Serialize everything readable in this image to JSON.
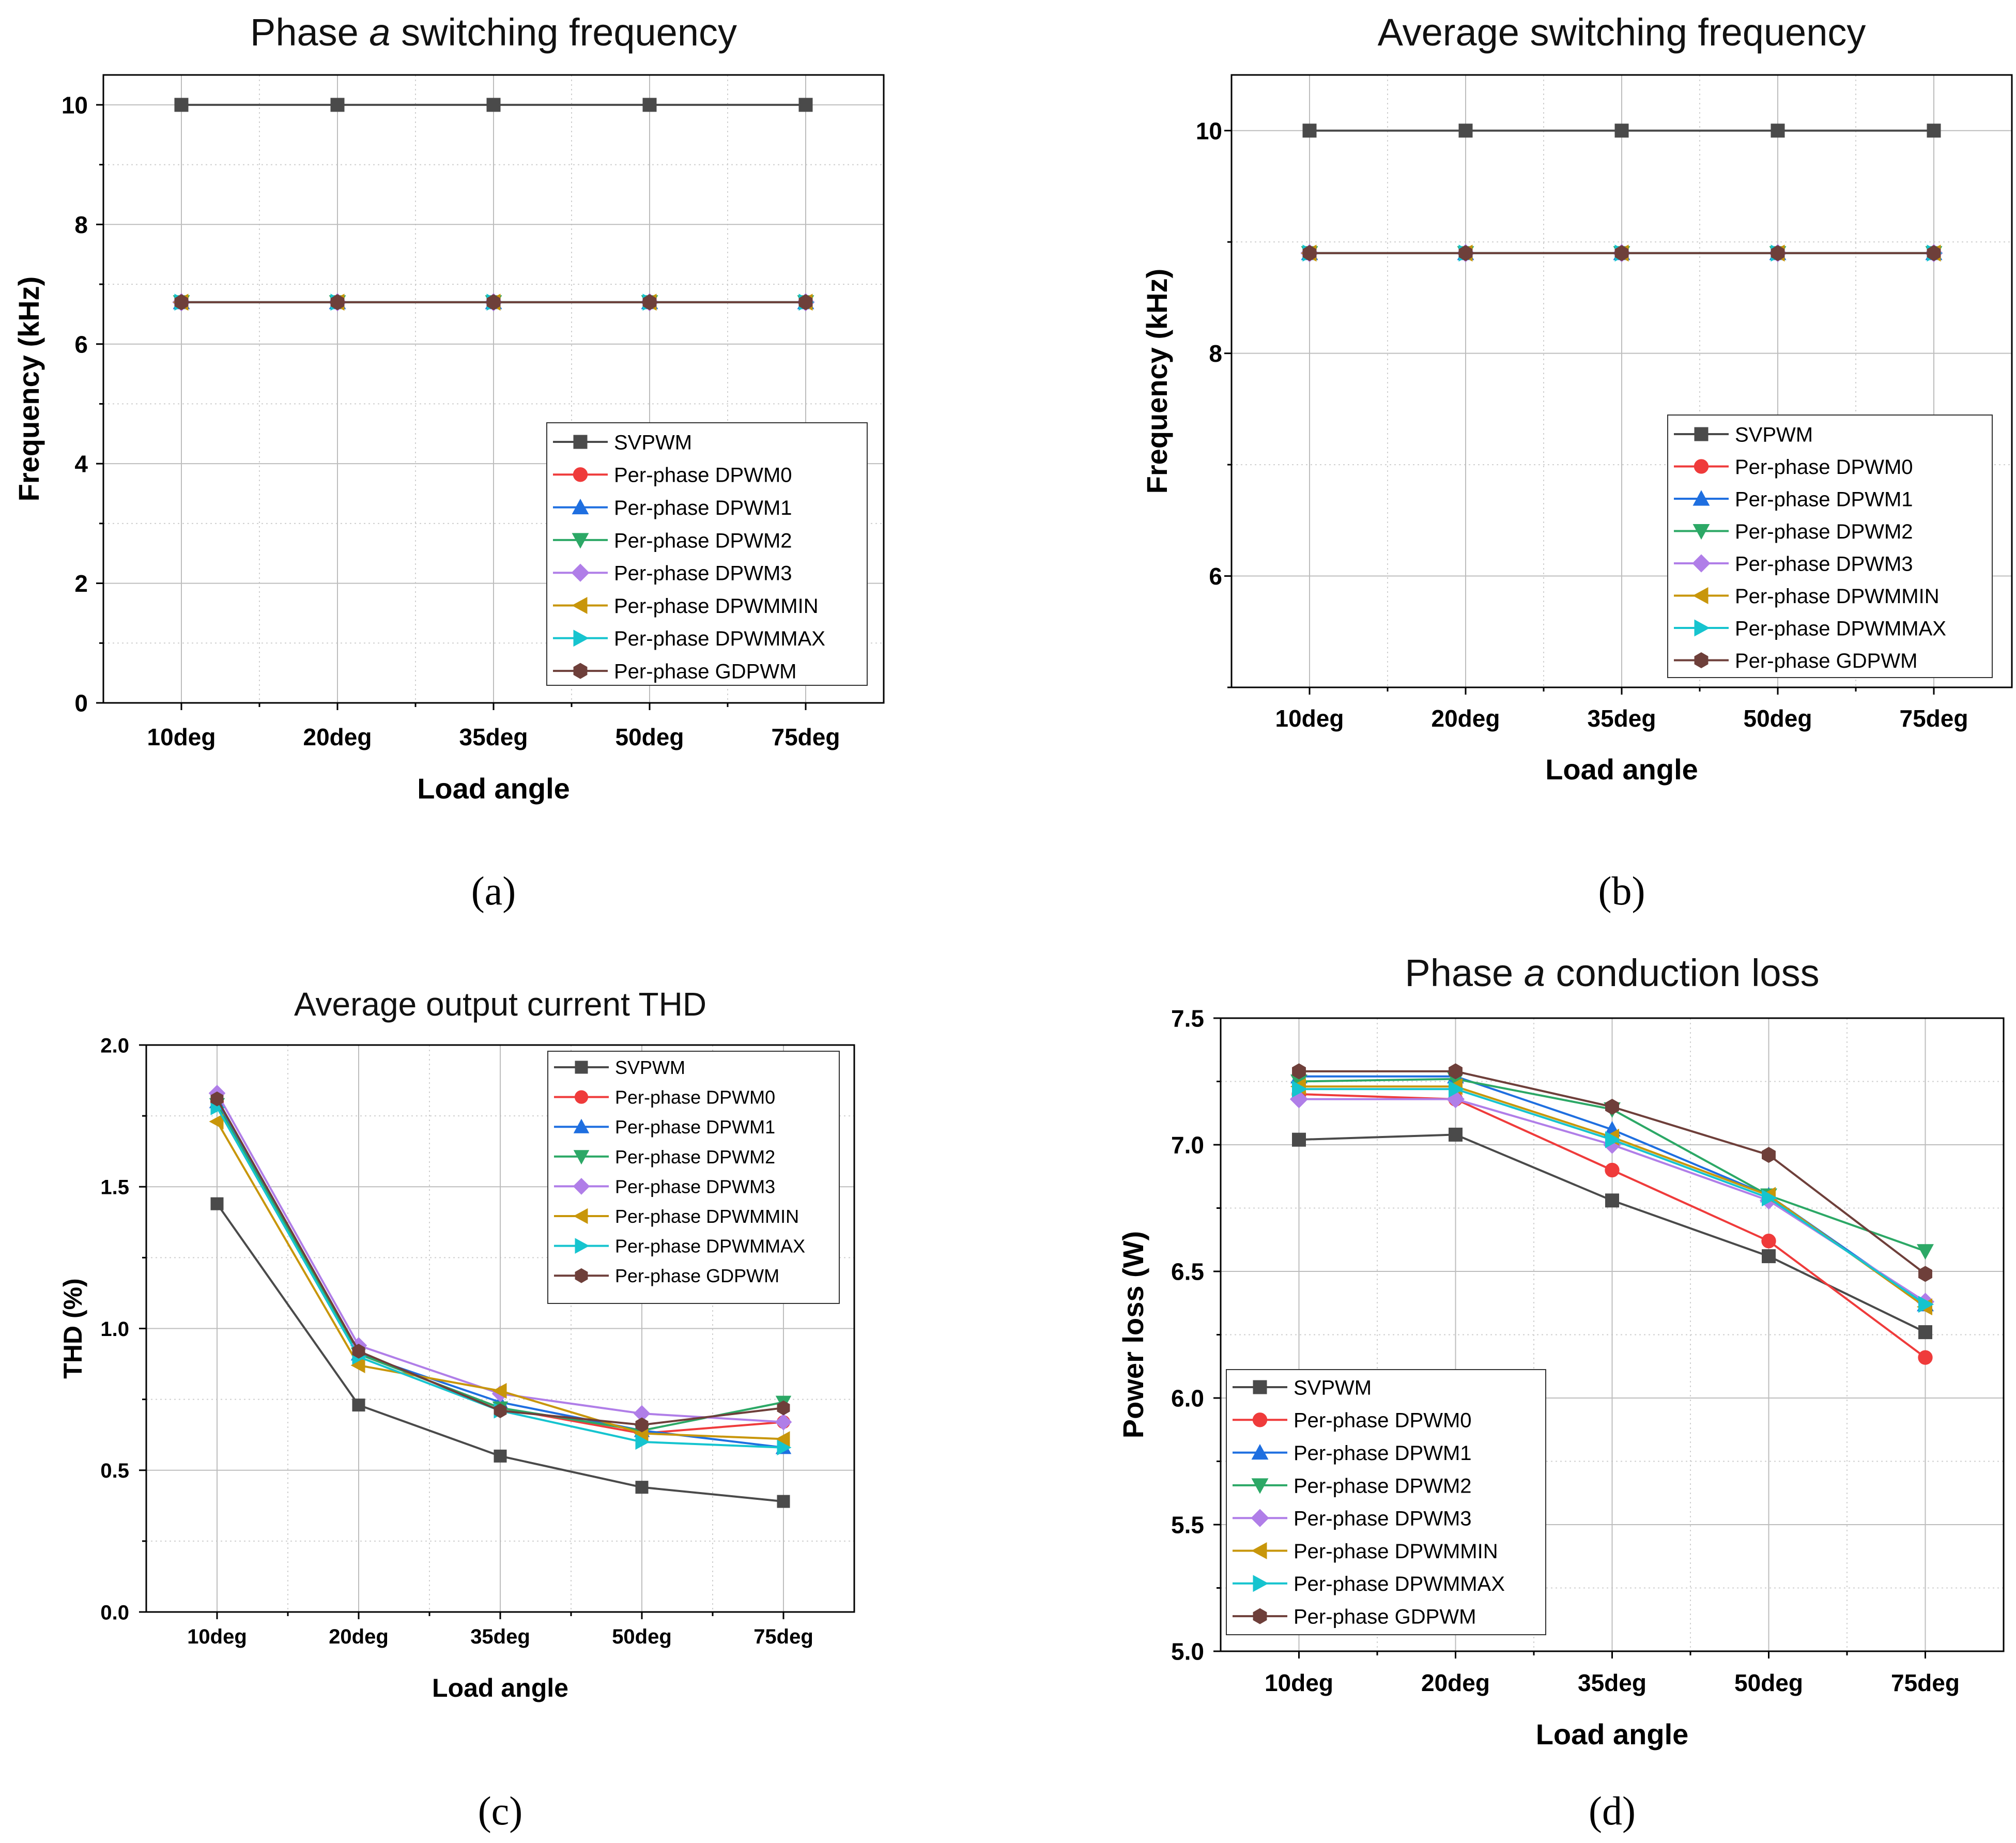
{
  "chart_data": [
    {
      "id": "a",
      "type": "line",
      "title_pre": "Phase ",
      "title_it": "a",
      "title_post": " switching frequency",
      "xlabel": "Load angle",
      "ylabel": "Frequency (kHz)",
      "panel_label": "(a)",
      "categories": [
        "10deg",
        "20deg",
        "35deg",
        "50deg",
        "75deg"
      ],
      "ylim": [
        0,
        10.5
      ],
      "yticks": [
        0,
        2,
        4,
        6,
        8,
        10
      ],
      "ytick_labels": [
        "0",
        "2",
        "4",
        "6",
        "8",
        "10"
      ],
      "legend_position": "lower-right",
      "series": [
        {
          "name": "SVPWM",
          "values": [
            10,
            10,
            10,
            10,
            10
          ]
        },
        {
          "name": "Per-phase DPWM0",
          "values": [
            6.7,
            6.7,
            6.7,
            6.7,
            6.7
          ]
        },
        {
          "name": "Per-phase DPWM1",
          "values": [
            6.7,
            6.7,
            6.7,
            6.7,
            6.7
          ]
        },
        {
          "name": "Per-phase DPWM2",
          "values": [
            6.7,
            6.7,
            6.7,
            6.7,
            6.7
          ]
        },
        {
          "name": "Per-phase DPWM3",
          "values": [
            6.7,
            6.7,
            6.7,
            6.7,
            6.7
          ]
        },
        {
          "name": "Per-phase DPWMMIN",
          "values": [
            6.7,
            6.7,
            6.7,
            6.7,
            6.7
          ]
        },
        {
          "name": "Per-phase DPWMMAX",
          "values": [
            6.7,
            6.7,
            6.7,
            6.7,
            6.7
          ]
        },
        {
          "name": "Per-phase GDPWM",
          "values": [
            6.7,
            6.7,
            6.7,
            6.7,
            6.7
          ]
        }
      ]
    },
    {
      "id": "b",
      "type": "line",
      "title_pre": "Average switching frequency",
      "title_it": "",
      "title_post": "",
      "xlabel": "Load angle",
      "ylabel": "Frequency (kHz)",
      "panel_label": "(b)",
      "categories": [
        "10deg",
        "20deg",
        "35deg",
        "50deg",
        "75deg"
      ],
      "ylim": [
        5,
        10.5
      ],
      "yticks": [
        6,
        8,
        10
      ],
      "ytick_labels": [
        "6",
        "8",
        "10"
      ],
      "legend_position": "lower-right",
      "series": [
        {
          "name": "SVPWM",
          "values": [
            10,
            10,
            10,
            10,
            10
          ]
        },
        {
          "name": "Per-phase DPWM0",
          "values": [
            8.9,
            8.9,
            8.9,
            8.9,
            8.9
          ]
        },
        {
          "name": "Per-phase DPWM1",
          "values": [
            8.9,
            8.9,
            8.9,
            8.9,
            8.9
          ]
        },
        {
          "name": "Per-phase DPWM2",
          "values": [
            8.9,
            8.9,
            8.9,
            8.9,
            8.9
          ]
        },
        {
          "name": "Per-phase DPWM3",
          "values": [
            8.9,
            8.9,
            8.9,
            8.9,
            8.9
          ]
        },
        {
          "name": "Per-phase DPWMMIN",
          "values": [
            8.9,
            8.9,
            8.9,
            8.9,
            8.9
          ]
        },
        {
          "name": "Per-phase DPWMMAX",
          "values": [
            8.9,
            8.9,
            8.9,
            8.9,
            8.9
          ]
        },
        {
          "name": "Per-phase GDPWM",
          "values": [
            8.9,
            8.9,
            8.9,
            8.9,
            8.9
          ]
        }
      ]
    },
    {
      "id": "c",
      "type": "line",
      "title_pre": "Average output current THD",
      "title_it": "",
      "title_post": "",
      "xlabel": "Load angle",
      "ylabel": "THD (%)",
      "panel_label": "(c)",
      "categories": [
        "10deg",
        "20deg",
        "35deg",
        "50deg",
        "75deg"
      ],
      "ylim": [
        0,
        2.0
      ],
      "yticks": [
        0,
        0.5,
        1.0,
        1.5,
        2.0
      ],
      "ytick_labels": [
        "0.0",
        "0.5",
        "1.0",
        "1.5",
        "2.0"
      ],
      "legend_position": "top-right",
      "series": [
        {
          "name": "SVPWM",
          "values": [
            1.44,
            0.73,
            0.55,
            0.44,
            0.39
          ]
        },
        {
          "name": "Per-phase DPWM0",
          "values": [
            1.8,
            0.91,
            0.72,
            0.63,
            0.67
          ]
        },
        {
          "name": "Per-phase DPWM1",
          "values": [
            1.8,
            0.91,
            0.74,
            0.64,
            0.58
          ]
        },
        {
          "name": "Per-phase DPWM2",
          "values": [
            1.79,
            0.91,
            0.72,
            0.64,
            0.74
          ]
        },
        {
          "name": "Per-phase DPWM3",
          "values": [
            1.83,
            0.94,
            0.77,
            0.7,
            0.67
          ]
        },
        {
          "name": "Per-phase DPWMMIN",
          "values": [
            1.73,
            0.87,
            0.78,
            0.63,
            0.61
          ]
        },
        {
          "name": "Per-phase DPWMMAX",
          "values": [
            1.78,
            0.9,
            0.71,
            0.6,
            0.58
          ]
        },
        {
          "name": "Per-phase GDPWM",
          "values": [
            1.81,
            0.92,
            0.71,
            0.66,
            0.72
          ]
        }
      ]
    },
    {
      "id": "d",
      "type": "line",
      "title_pre": "Phase ",
      "title_it": "a",
      "title_post": " conduction loss",
      "xlabel": "Load angle",
      "ylabel": "Power loss (W)",
      "panel_label": "(d)",
      "categories": [
        "10deg",
        "20deg",
        "35deg",
        "50deg",
        "75deg"
      ],
      "ylim": [
        5.0,
        7.5
      ],
      "yticks": [
        5.0,
        5.5,
        6.0,
        6.5,
        7.0,
        7.5
      ],
      "ytick_labels": [
        "5.0",
        "5.5",
        "6.0",
        "6.5",
        "7.0",
        "7.5"
      ],
      "legend_position": "lower-left",
      "series": [
        {
          "name": "SVPWM",
          "values": [
            7.02,
            7.04,
            6.78,
            6.56,
            6.26
          ]
        },
        {
          "name": "Per-phase DPWM0",
          "values": [
            7.2,
            7.18,
            6.9,
            6.62,
            6.16
          ]
        },
        {
          "name": "Per-phase DPWM1",
          "values": [
            7.27,
            7.27,
            7.06,
            6.8,
            6.37
          ]
        },
        {
          "name": "Per-phase DPWM2",
          "values": [
            7.25,
            7.26,
            7.14,
            6.8,
            6.58
          ]
        },
        {
          "name": "Per-phase DPWM3",
          "values": [
            7.18,
            7.18,
            7.0,
            6.78,
            6.38
          ]
        },
        {
          "name": "Per-phase DPWMMIN",
          "values": [
            7.23,
            7.23,
            7.03,
            6.8,
            6.36
          ]
        },
        {
          "name": "Per-phase DPWMMAX",
          "values": [
            7.22,
            7.22,
            7.02,
            6.79,
            6.37
          ]
        },
        {
          "name": "Per-phase GDPWM",
          "values": [
            7.29,
            7.29,
            7.15,
            6.96,
            6.49
          ]
        }
      ]
    }
  ],
  "series_styles": [
    {
      "color": "#4a4a4a",
      "marker": "square"
    },
    {
      "color": "#ef3b3b",
      "marker": "circle"
    },
    {
      "color": "#1f6fe0",
      "marker": "triangle-up"
    },
    {
      "color": "#2ca866",
      "marker": "triangle-down"
    },
    {
      "color": "#b07ee8",
      "marker": "diamond"
    },
    {
      "color": "#c8960a",
      "marker": "triangle-left"
    },
    {
      "color": "#16c4cf",
      "marker": "triangle-right"
    },
    {
      "color": "#6e3f3a",
      "marker": "hexagon"
    }
  ]
}
